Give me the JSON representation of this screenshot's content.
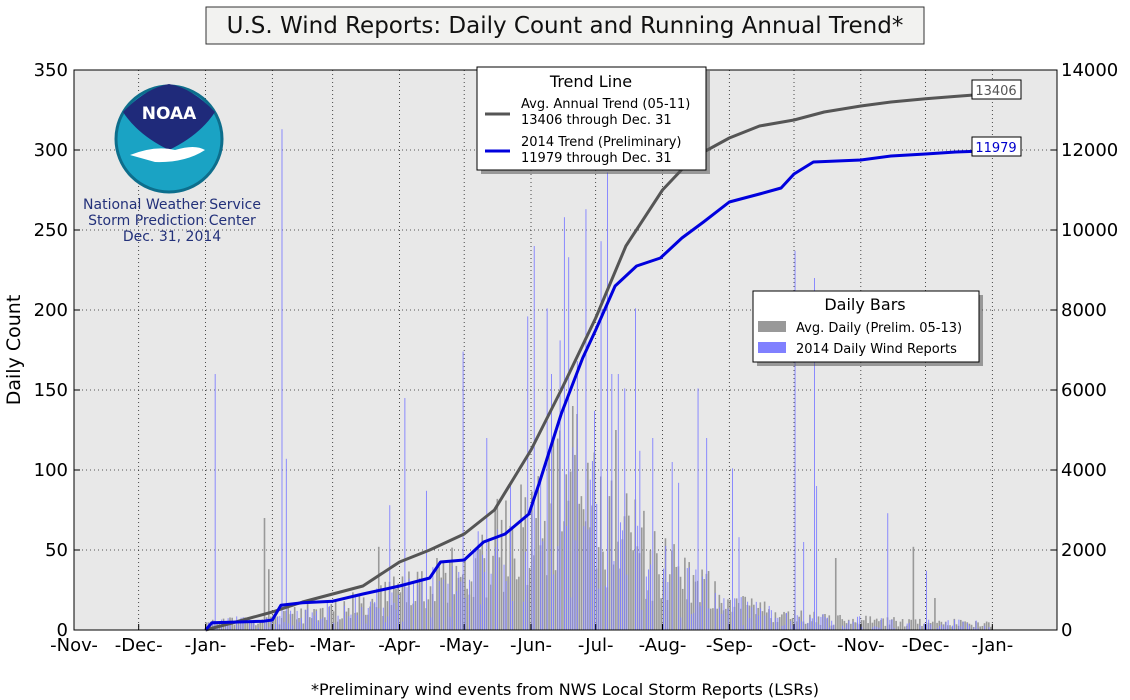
{
  "chart_data": {
    "type": "bar",
    "title": "U.S. Wind Reports: Daily Count and Running Annual Trend*",
    "footnote": "*Preliminary wind events from NWS Local Storm Reports (LSRs)",
    "ylabel": "Daily Count",
    "ylabel_right": "",
    "ylim": [
      0,
      350
    ],
    "ylim_right": [
      0,
      14000
    ],
    "yticks": [
      "0",
      "50",
      "100",
      "150",
      "200",
      "250",
      "300",
      "350"
    ],
    "yticks_right": [
      "0",
      "2000",
      "4000",
      "6000",
      "8000",
      "10000",
      "12000",
      "14000"
    ],
    "xlim": [
      "2013-11-01",
      "2015-01-31"
    ],
    "xticks": [
      {
        "date": "2013-11-01",
        "label": "-Nov-"
      },
      {
        "date": "2013-12-01",
        "label": "-Dec-"
      },
      {
        "date": "2014-01-01",
        "label": "-Jan-"
      },
      {
        "date": "2014-02-01",
        "label": "-Feb-"
      },
      {
        "date": "2014-03-01",
        "label": "-Mar-"
      },
      {
        "date": "2014-04-01",
        "label": "-Apr-"
      },
      {
        "date": "2014-05-01",
        "label": "-May-"
      },
      {
        "date": "2014-06-01",
        "label": "-Jun-"
      },
      {
        "date": "2014-07-01",
        "label": "-Jul-"
      },
      {
        "date": "2014-08-01",
        "label": "-Aug-"
      },
      {
        "date": "2014-09-01",
        "label": "-Sep-"
      },
      {
        "date": "2014-10-01",
        "label": "-Oct-"
      },
      {
        "date": "2014-11-01",
        "label": "-Nov-"
      },
      {
        "date": "2014-12-01",
        "label": "-Dec-"
      },
      {
        "date": "2015-01-01",
        "label": "-Jan-"
      }
    ],
    "grid": true,
    "agency": {
      "logo_text": "NOAA",
      "line1": "National Weather Service",
      "line2": "Storm Prediction Center",
      "line3": "Dec. 31, 2014"
    },
    "legend_trend": {
      "title": "Trend Line",
      "placement": "top-center",
      "items": [
        {
          "line1": "Avg. Annual Trend (05-11)",
          "line2": "13406 through Dec. 31",
          "color": "#555555"
        },
        {
          "line1": "2014 Trend (Preliminary)",
          "line2": "11979 through Dec. 31",
          "color": "#0000dd"
        }
      ]
    },
    "legend_bars": {
      "title": "Daily Bars",
      "placement": "center-right",
      "items": [
        {
          "label": "Avg. Daily (Prelim. 05-13)",
          "color": "#999999"
        },
        {
          "label": "2014 Daily Wind Reports",
          "color": "#8080ff"
        }
      ]
    },
    "end_labels": [
      {
        "text": "13406",
        "value": 13406,
        "color": "#555555"
      },
      {
        "text": "11979",
        "value": 11979,
        "color": "#0000dd"
      }
    ],
    "series": [
      {
        "name": "Avg. Annual Trend (05-11)",
        "kind": "cumulative-line",
        "axis": "right",
        "color": "#555555",
        "points": [
          [
            "2014-01-01",
            0
          ],
          [
            "2014-01-15",
            200
          ],
          [
            "2014-02-01",
            450
          ],
          [
            "2014-02-15",
            700
          ],
          [
            "2014-03-01",
            900
          ],
          [
            "2014-03-15",
            1100
          ],
          [
            "2014-04-01",
            1700
          ],
          [
            "2014-04-15",
            2000
          ],
          [
            "2014-05-01",
            2400
          ],
          [
            "2014-05-15",
            3000
          ],
          [
            "2014-06-01",
            4500
          ],
          [
            "2014-06-15",
            6000
          ],
          [
            "2014-07-01",
            7800
          ],
          [
            "2014-07-15",
            9600
          ],
          [
            "2014-08-01",
            11000
          ],
          [
            "2014-08-15",
            11800
          ],
          [
            "2014-09-01",
            12300
          ],
          [
            "2014-09-15",
            12600
          ],
          [
            "2014-10-01",
            12750
          ],
          [
            "2014-10-15",
            12950
          ],
          [
            "2014-11-01",
            13100
          ],
          [
            "2014-11-15",
            13200
          ],
          [
            "2014-12-01",
            13280
          ],
          [
            "2014-12-15",
            13340
          ],
          [
            "2014-12-31",
            13406
          ]
        ]
      },
      {
        "name": "2014 Trend (Preliminary)",
        "kind": "cumulative-line",
        "axis": "right",
        "color": "#0000dd",
        "points": [
          [
            "2014-01-01",
            0
          ],
          [
            "2014-01-04",
            180
          ],
          [
            "2014-01-28",
            220
          ],
          [
            "2014-02-01",
            250
          ],
          [
            "2014-02-05",
            620
          ],
          [
            "2014-02-15",
            680
          ],
          [
            "2014-03-01",
            720
          ],
          [
            "2014-03-15",
            900
          ],
          [
            "2014-04-01",
            1100
          ],
          [
            "2014-04-15",
            1300
          ],
          [
            "2014-04-20",
            1700
          ],
          [
            "2014-05-01",
            1750
          ],
          [
            "2014-05-10",
            2200
          ],
          [
            "2014-05-20",
            2400
          ],
          [
            "2014-05-31",
            2900
          ],
          [
            "2014-06-05",
            3700
          ],
          [
            "2014-06-15",
            5400
          ],
          [
            "2014-06-25",
            6800
          ],
          [
            "2014-07-01",
            7500
          ],
          [
            "2014-07-10",
            8600
          ],
          [
            "2014-07-20",
            9100
          ],
          [
            "2014-07-31",
            9300
          ],
          [
            "2014-08-10",
            9800
          ],
          [
            "2014-08-20",
            10200
          ],
          [
            "2014-09-01",
            10700
          ],
          [
            "2014-09-15",
            10900
          ],
          [
            "2014-09-25",
            11050
          ],
          [
            "2014-10-01",
            11400
          ],
          [
            "2014-10-10",
            11700
          ],
          [
            "2014-11-01",
            11750
          ],
          [
            "2014-11-15",
            11850
          ],
          [
            "2014-12-01",
            11900
          ],
          [
            "2014-12-15",
            11950
          ],
          [
            "2014-12-31",
            11979
          ]
        ]
      },
      {
        "name": "Avg. Daily (Prelim. 05-13)",
        "kind": "bars",
        "axis": "left",
        "color": "#999999",
        "seasonal_shape": [
          [
            "2014-01-01",
            4
          ],
          [
            "2014-02-01",
            8
          ],
          [
            "2014-03-01",
            12
          ],
          [
            "2014-04-01",
            22
          ],
          [
            "2014-05-01",
            35
          ],
          [
            "2014-06-01",
            70
          ],
          [
            "2014-06-20",
            85
          ],
          [
            "2014-07-01",
            70
          ],
          [
            "2014-08-01",
            40
          ],
          [
            "2014-09-01",
            15
          ],
          [
            "2014-10-01",
            8
          ],
          [
            "2014-11-01",
            6
          ],
          [
            "2014-12-01",
            5
          ],
          [
            "2014-12-31",
            4
          ]
        ],
        "notable": [
          [
            "2014-01-28",
            70
          ],
          [
            "2014-01-30",
            38
          ],
          [
            "2014-03-22",
            52
          ],
          [
            "2014-04-18",
            45
          ],
          [
            "2014-06-20",
            140
          ],
          [
            "2014-06-22",
            135
          ],
          [
            "2014-07-10",
            125
          ],
          [
            "2014-10-20",
            45
          ],
          [
            "2014-11-25",
            52
          ],
          [
            "2014-12-05",
            20
          ]
        ]
      },
      {
        "name": "2014 Daily Wind Reports",
        "kind": "bars",
        "axis": "left",
        "color": "#8080ff",
        "notable": [
          [
            "2014-01-05",
            160
          ],
          [
            "2014-02-05",
            313
          ],
          [
            "2014-02-07",
            107
          ],
          [
            "2014-03-27",
            78
          ],
          [
            "2014-04-03",
            145
          ],
          [
            "2014-04-13",
            87
          ],
          [
            "2014-04-30",
            174
          ],
          [
            "2014-05-11",
            120
          ],
          [
            "2014-05-22",
            92
          ],
          [
            "2014-05-30",
            196
          ],
          [
            "2014-06-02",
            240
          ],
          [
            "2014-06-05",
            95
          ],
          [
            "2014-06-08",
            201
          ],
          [
            "2014-06-10",
            160
          ],
          [
            "2014-06-14",
            181
          ],
          [
            "2014-06-16",
            258
          ],
          [
            "2014-06-18",
            233
          ],
          [
            "2014-06-22",
            168
          ],
          [
            "2014-06-26",
            263
          ],
          [
            "2014-06-30",
            137
          ],
          [
            "2014-07-03",
            243
          ],
          [
            "2014-07-06",
            286
          ],
          [
            "2014-07-08",
            160
          ],
          [
            "2014-07-11",
            160
          ],
          [
            "2014-07-14",
            151
          ],
          [
            "2014-07-19",
            201
          ],
          [
            "2014-07-21",
            112
          ],
          [
            "2014-07-27",
            120
          ],
          [
            "2014-08-05",
            105
          ],
          [
            "2014-08-08",
            92
          ],
          [
            "2014-08-17",
            151
          ],
          [
            "2014-08-21",
            120
          ],
          [
            "2014-09-02",
            101
          ],
          [
            "2014-09-05",
            58
          ],
          [
            "2014-10-01",
            237
          ],
          [
            "2014-10-05",
            55
          ],
          [
            "2014-10-10",
            220
          ],
          [
            "2014-10-11",
            90
          ],
          [
            "2014-11-13",
            73
          ],
          [
            "2014-12-01",
            37
          ]
        ]
      }
    ]
  }
}
